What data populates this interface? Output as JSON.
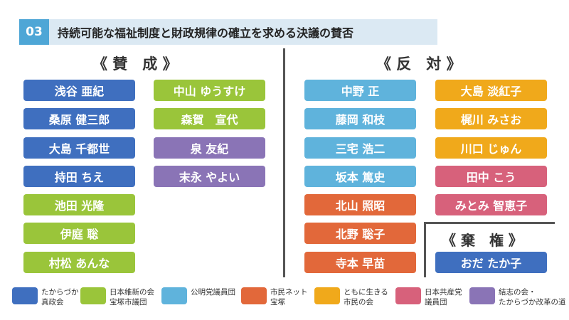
{
  "header": {
    "number": "03",
    "title": "持続可能な福祉制度と財政規律の確立を求める決議の賛否"
  },
  "sections": {
    "yes": "《 賛　成 》",
    "no": "《 反　対 》",
    "abstain": "《 棄　権 》"
  },
  "colors": {
    "takarazuka_shinseikai": "#3f6fbf",
    "ishin": "#9ac53a",
    "komeito": "#5fb3dc",
    "shimin_net": "#e2683a",
    "tomoni": "#f0a91b",
    "kyosanto": "#d7617b",
    "kesshi": "#8a74b6"
  },
  "yes_members": [
    {
      "name": "浅谷 亜紀",
      "color": "#3f6fbf"
    },
    {
      "name": "桑原 健三郎",
      "color": "#3f6fbf"
    },
    {
      "name": "大島 千都世",
      "color": "#3f6fbf"
    },
    {
      "name": "持田 ちえ",
      "color": "#3f6fbf"
    },
    {
      "name": "池田 光隆",
      "color": "#9ac53a"
    },
    {
      "name": "伊庭 聡",
      "color": "#9ac53a"
    },
    {
      "name": "村松 あんな",
      "color": "#9ac53a"
    },
    {
      "name": "中山 ゆうすけ",
      "color": "#9ac53a"
    },
    {
      "name": "森賀　宣代",
      "color": "#9ac53a"
    },
    {
      "name": "泉 友紀",
      "color": "#8a74b6"
    },
    {
      "name": "末永 やよい",
      "color": "#8a74b6"
    }
  ],
  "no_members": [
    {
      "name": "中野 正",
      "color": "#5fb3dc"
    },
    {
      "name": "藤岡 和枝",
      "color": "#5fb3dc"
    },
    {
      "name": "三宅 浩二",
      "color": "#5fb3dc"
    },
    {
      "name": "坂本 篤史",
      "color": "#5fb3dc"
    },
    {
      "name": "北山 照昭",
      "color": "#e2683a"
    },
    {
      "name": "北野 聡子",
      "color": "#e2683a"
    },
    {
      "name": "寺本 早苗",
      "color": "#e2683a"
    },
    {
      "name": "大島 淡紅子",
      "color": "#f0a91b"
    },
    {
      "name": "梶川 みさお",
      "color": "#f0a91b"
    },
    {
      "name": "川口 じゅん",
      "color": "#f0a91b"
    },
    {
      "name": "田中 こう",
      "color": "#d7617b"
    },
    {
      "name": "みとみ 智恵子",
      "color": "#d7617b"
    }
  ],
  "abstain_members": [
    {
      "name": "おだ たか子",
      "color": "#3f6fbf"
    }
  ],
  "legend": [
    {
      "label": "たからづか\n真政会",
      "color": "#3f6fbf"
    },
    {
      "label": "日本維新の会\n宝塚市議団",
      "color": "#9ac53a"
    },
    {
      "label": "公明党議員団",
      "color": "#5fb3dc"
    },
    {
      "label": "市民ネット\n宝塚",
      "color": "#e2683a"
    },
    {
      "label": "ともに生きる\n市民の会",
      "color": "#f0a91b"
    },
    {
      "label": "日本共産党\n議員団",
      "color": "#d7617b"
    },
    {
      "label": "結志の会・\nたからづか改革の道",
      "color": "#8a74b6"
    }
  ]
}
